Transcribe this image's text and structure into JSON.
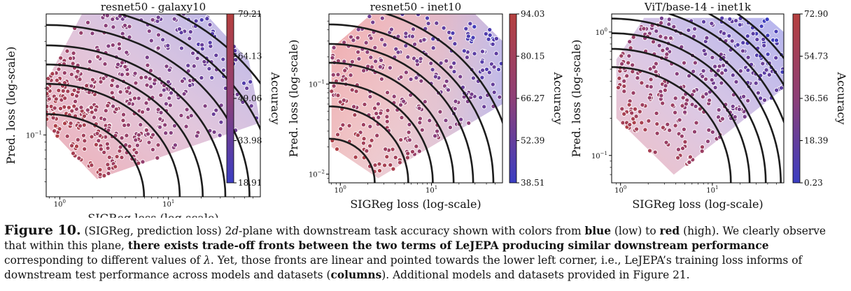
{
  "chart_data": [
    {
      "type": "scatter",
      "title": "resnet50 - galaxy10",
      "xlabel": "SIGReg loss (log-scale)",
      "ylabel": "Pred. loss (log-scale)",
      "x_scale": "log",
      "y_scale": "log",
      "xlim": [
        0.75,
        70
      ],
      "ylim": [
        0.04,
        0.6
      ],
      "xticks": [
        {
          "v": 1,
          "base": "10",
          "exp": "0"
        },
        {
          "v": 10,
          "base": "10",
          "exp": "1"
        }
      ],
      "yticks": [
        {
          "v": 0.1,
          "base": "10",
          "exp": "−1"
        }
      ],
      "colorbar": {
        "label": "Accuracy",
        "min": 18.91,
        "max": 79.21,
        "ticks": [
          "79.21",
          "64.13",
          "49.06",
          "33.98",
          "18.91"
        ]
      },
      "region": [
        [
          0.75,
          0.115
        ],
        [
          2.2,
          0.052
        ],
        [
          70,
          0.12
        ],
        [
          55,
          0.3
        ],
        [
          22,
          0.6
        ],
        [
          1.6,
          0.6
        ],
        [
          0.75,
          0.22
        ]
      ],
      "fronts": [
        0.75,
        1.6,
        2.6,
        4.2,
        7,
        12,
        20
      ],
      "seed": 11,
      "n_points": 480
    },
    {
      "type": "scatter",
      "title": "resnet50 - inet10",
      "xlabel": "SIGReg loss (log-scale)",
      "ylabel": "Pred. loss (log-scale)",
      "x_scale": "log",
      "y_scale": "log",
      "xlim": [
        0.75,
        60
      ],
      "ylim": [
        0.008,
        0.6
      ],
      "xticks": [
        {
          "v": 1,
          "base": "10",
          "exp": "0"
        },
        {
          "v": 10,
          "base": "10",
          "exp": "1"
        }
      ],
      "yticks": [
        {
          "v": 0.01,
          "base": "10",
          "exp": "−2"
        },
        {
          "v": 0.1,
          "base": "10",
          "exp": "−1"
        }
      ],
      "colorbar": {
        "label": "Accuracy",
        "min": 38.51,
        "max": 94.03,
        "ticks": [
          "94.03",
          "80.15",
          "66.27",
          "52.39",
          "38.51"
        ]
      },
      "region": [
        [
          0.8,
          0.02
        ],
        [
          2.6,
          0.009
        ],
        [
          60,
          0.06
        ],
        [
          60,
          0.3
        ],
        [
          30,
          0.6
        ],
        [
          2.2,
          0.6
        ],
        [
          0.8,
          0.25
        ]
      ],
      "fronts": [
        0.3,
        0.7,
        1.3,
        2.2,
        3.6,
        6,
        10
      ],
      "seed": 23,
      "n_points": 300
    },
    {
      "type": "scatter",
      "title": "ViT/base-14 - inet1k",
      "xlabel": "SIGReg loss (log-scale)",
      "ylabel": "Pred. loss (log-scale)",
      "x_scale": "log",
      "y_scale": "log",
      "xlim": [
        0.8,
        60
      ],
      "ylim": [
        0.06,
        1.4
      ],
      "xticks": [
        {
          "v": 1,
          "base": "10",
          "exp": "0"
        },
        {
          "v": 10,
          "base": "10",
          "exp": "1"
        }
      ],
      "yticks": [
        {
          "v": 0.1,
          "base": "10",
          "exp": "−1"
        },
        {
          "v": 1,
          "base": "10",
          "exp": "0"
        }
      ],
      "colorbar": {
        "label": "Accuracy",
        "min": 0.23,
        "max": 72.9,
        "ticks": [
          "72.90",
          "54.73",
          "36.56",
          "18.39",
          "0.23"
        ]
      },
      "region": [
        [
          0.9,
          0.2
        ],
        [
          3.8,
          0.07
        ],
        [
          60,
          0.35
        ],
        [
          60,
          1.0
        ],
        [
          40,
          1.3
        ],
        [
          1.8,
          1.3
        ],
        [
          0.9,
          0.6
        ]
      ],
      "fronts": [
        2.0,
        3.2,
        4.8,
        7,
        10,
        15,
        22
      ],
      "seed": 37,
      "n_points": 330
    }
  ],
  "caption": {
    "label": "Figure 10.",
    "t1": " (SIGReg, prediction loss) 2",
    "t1_italic": "d",
    "t2": "-plane with downstream task accuracy shown with colors from ",
    "b_blue": "blue",
    "t3": " (low) to ",
    "b_red": "red",
    "t4": " (high). We clearly observe that within this plane, ",
    "b_main": "there exists trade-off fronts between the two terms of LeJEPA producing similar downstream performance",
    "t5": " corresponding to different values of ",
    "lambda": "λ",
    "t6": ". Yet, those fronts are linear and pointed towards the lower left corner, i.e., LeJEPA’s training loss informs of downstream test performance across models and datasets (",
    "b_cols": "columns",
    "t7": "). Additional models and datasets provided in Figure 21."
  }
}
